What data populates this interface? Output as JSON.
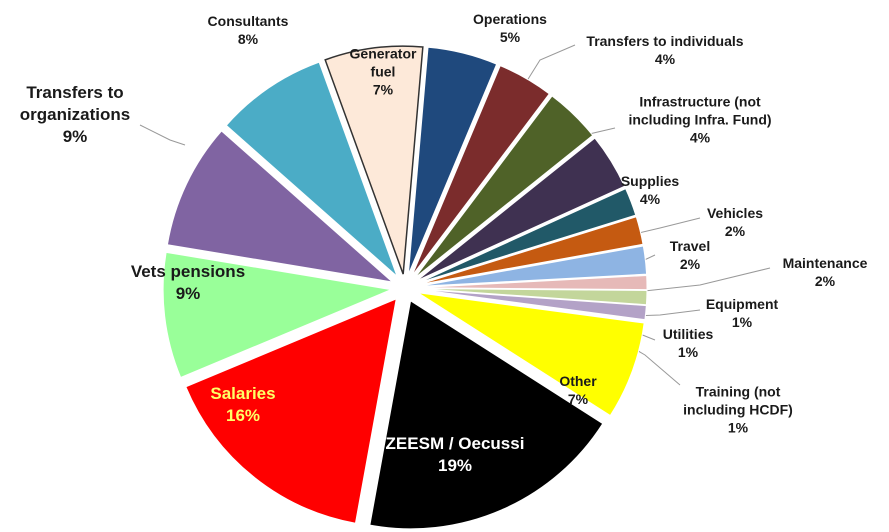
{
  "chart_data": {
    "type": "pie",
    "categories": [
      "Generator fuel",
      "Operations",
      "Transfers to individuals",
      "Infrastructure (not including Infra. Fund)",
      "Supplies",
      "Vehicles",
      "Travel",
      "Maintenance",
      "Equipment",
      "Utilities",
      "Training (not including HCDF)",
      "Other",
      "ZEESM / Oecussi",
      "Salaries",
      "Vets pensions",
      "Transfers to organizations",
      "Consultants"
    ],
    "values": [
      7,
      5,
      4,
      4,
      4,
      2,
      2,
      2,
      1,
      1,
      1,
      7,
      19,
      16,
      9,
      9,
      8
    ],
    "value_labels": [
      "7%",
      "5%",
      "4%",
      "4%",
      "4%",
      "2%",
      "2%",
      "2%",
      "1%",
      "1%",
      "1%",
      "7%",
      "19%",
      "16%",
      "9%",
      "9%",
      "8%"
    ],
    "colors": [
      "#fde9d9",
      "#1f497d",
      "#7b2c2c",
      "#4f6228",
      "#3f3151",
      "#215968",
      "#c55a11",
      "#8eb4e3",
      "#e6b9b8",
      "#c3d69b",
      "#b3a2c7",
      "#ffff00",
      "#000000",
      "#ff0000",
      "#99ff99",
      "#8064a2",
      "#4bacc6"
    ]
  }
}
